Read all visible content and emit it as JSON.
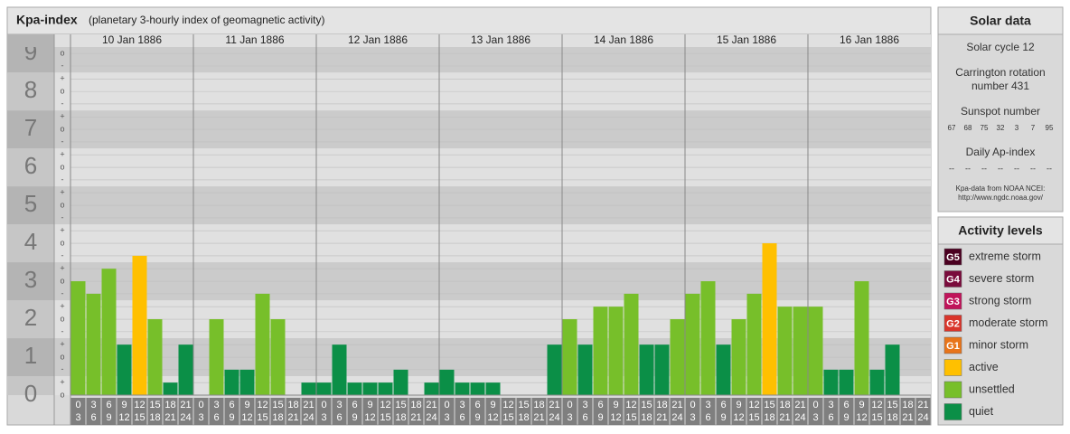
{
  "chart_data": {
    "type": "bar",
    "title": "Kpa-index",
    "subtitle": "(planetary 3-hourly index of geomagnetic activity)",
    "ylim": [
      0,
      9.17
    ],
    "yticks": [
      0,
      1,
      2,
      3,
      4,
      5,
      6,
      7,
      8,
      9
    ],
    "minor_ticks": [
      {
        "value": 0,
        "label": "o"
      },
      {
        "value": 0.33,
        "label": "+"
      },
      {
        "value": 0.67,
        "label": "-"
      },
      {
        "value": 1,
        "label": "o"
      },
      {
        "value": 1.33,
        "label": "+"
      },
      {
        "value": 1.67,
        "label": "-"
      },
      {
        "value": 2,
        "label": "o"
      },
      {
        "value": 2.33,
        "label": "+"
      },
      {
        "value": 2.67,
        "label": "-"
      },
      {
        "value": 3,
        "label": "o"
      },
      {
        "value": 3.33,
        "label": "+"
      },
      {
        "value": 3.67,
        "label": "-"
      },
      {
        "value": 4,
        "label": "o"
      },
      {
        "value": 4.33,
        "label": "+"
      },
      {
        "value": 4.67,
        "label": "-"
      },
      {
        "value": 5,
        "label": "o"
      },
      {
        "value": 5.33,
        "label": "+"
      },
      {
        "value": 5.67,
        "label": "-"
      },
      {
        "value": 6,
        "label": "o"
      },
      {
        "value": 6.33,
        "label": "+"
      },
      {
        "value": 6.67,
        "label": "-"
      },
      {
        "value": 7,
        "label": "o"
      },
      {
        "value": 7.33,
        "label": "+"
      },
      {
        "value": 7.67,
        "label": "-"
      },
      {
        "value": 8,
        "label": "o"
      },
      {
        "value": 8.33,
        "label": "+"
      },
      {
        "value": 8.67,
        "label": "-"
      },
      {
        "value": 9,
        "label": "o"
      }
    ],
    "grid": true,
    "hour_ranges": [
      [
        "0",
        "3"
      ],
      [
        "3",
        "6"
      ],
      [
        "6",
        "9"
      ],
      [
        "9",
        "12"
      ],
      [
        "12",
        "15"
      ],
      [
        "15",
        "18"
      ],
      [
        "18",
        "21"
      ],
      [
        "21",
        "24"
      ]
    ],
    "days": [
      {
        "date": "10 Jan 1886",
        "values": [
          3,
          2.67,
          3.33,
          1.33,
          3.67,
          2,
          0.33,
          1.33
        ],
        "colors": [
          "#77bf2a",
          "#77bf2a",
          "#77bf2a",
          "#0b8f47",
          "#ffc000",
          "#77bf2a",
          "#0b8f47",
          "#0b8f47"
        ]
      },
      {
        "date": "11 Jan 1886",
        "values": [
          0,
          2,
          0.67,
          0.67,
          2.67,
          2,
          0,
          0.33
        ],
        "colors": [
          "#0b8f47",
          "#77bf2a",
          "#0b8f47",
          "#0b8f47",
          "#77bf2a",
          "#77bf2a",
          "#0b8f47",
          "#0b8f47"
        ]
      },
      {
        "date": "12 Jan 1886",
        "values": [
          0.33,
          1.33,
          0.33,
          0.33,
          0.33,
          0.67,
          0,
          0.33
        ],
        "colors": [
          "#0b8f47",
          "#0b8f47",
          "#0b8f47",
          "#0b8f47",
          "#0b8f47",
          "#0b8f47",
          "#0b8f47",
          "#0b8f47"
        ]
      },
      {
        "date": "13 Jan 1886",
        "values": [
          0.67,
          0.33,
          0.33,
          0.33,
          0,
          0,
          0,
          1.33
        ],
        "colors": [
          "#0b8f47",
          "#0b8f47",
          "#0b8f47",
          "#0b8f47",
          "#0b8f47",
          "#0b8f47",
          "#0b8f47",
          "#0b8f47"
        ]
      },
      {
        "date": "14 Jan 1886",
        "values": [
          2,
          1.33,
          2.33,
          2.33,
          2.67,
          1.33,
          1.33,
          2
        ],
        "colors": [
          "#77bf2a",
          "#0b8f47",
          "#77bf2a",
          "#77bf2a",
          "#77bf2a",
          "#0b8f47",
          "#0b8f47",
          "#77bf2a"
        ]
      },
      {
        "date": "15 Jan 1886",
        "values": [
          2.67,
          3,
          1.33,
          2,
          2.67,
          4,
          2.33,
          2.33
        ],
        "colors": [
          "#77bf2a",
          "#77bf2a",
          "#0b8f47",
          "#77bf2a",
          "#77bf2a",
          "#ffc000",
          "#77bf2a",
          "#77bf2a"
        ]
      },
      {
        "date": "16 Jan 1886",
        "values": [
          2.33,
          0.67,
          0.67,
          3,
          0.67,
          1.33,
          0,
          0
        ],
        "colors": [
          "#77bf2a",
          "#0b8f47",
          "#0b8f47",
          "#77bf2a",
          "#0b8f47",
          "#0b8f47",
          "#0b8f47",
          "#0b8f47"
        ]
      }
    ]
  },
  "solar_data": {
    "title": "Solar data",
    "solar_cycle": "Solar cycle 12",
    "carrington": [
      "Carrington rotation",
      "number 431"
    ],
    "sunspot_title": "Sunspot number",
    "sunspot_numbers": [
      67,
      68,
      75,
      32,
      3,
      7,
      95
    ],
    "ap_title": "Daily Ap-index",
    "ap_values": [
      "--",
      "--",
      "--",
      "--",
      "--",
      "--",
      "--"
    ],
    "source": [
      "Kpa-data from NOAA NCEI:",
      "http://www.ngdc.noaa.gov/"
    ]
  },
  "activity_levels": {
    "title": "Activity levels",
    "items": [
      {
        "badge": "G5",
        "label": "extreme storm",
        "color": "#4b0021"
      },
      {
        "badge": "G4",
        "label": "severe storm",
        "color": "#7a0b3c"
      },
      {
        "badge": "G3",
        "label": "strong storm",
        "color": "#c0145a"
      },
      {
        "badge": "G2",
        "label": "moderate storm",
        "color": "#d9352b"
      },
      {
        "badge": "G1",
        "label": "minor storm",
        "color": "#e8741a"
      },
      {
        "badge": null,
        "label": "active",
        "color": "#ffc000"
      },
      {
        "badge": null,
        "label": "unsettled",
        "color": "#77bf2a"
      },
      {
        "badge": null,
        "label": "quiet",
        "color": "#0b8f47"
      }
    ]
  }
}
